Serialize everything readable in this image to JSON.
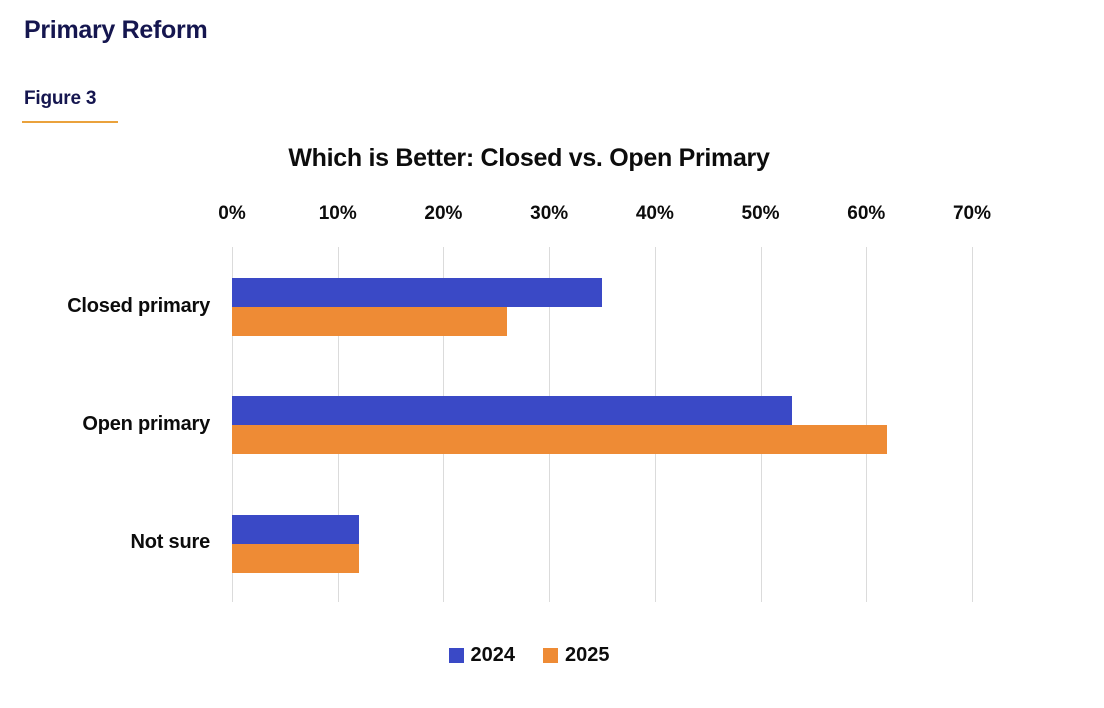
{
  "page": {
    "title": "Primary Reform",
    "figure_label": "Figure 3"
  },
  "colors": {
    "heading_navy": "#15164F",
    "figure_underline_orange": "#EAA23C",
    "gridline": "#DBDBDB",
    "series_2024_blue": "#3A49C6",
    "series_2025_orange": "#EE8B35",
    "text": "#0C0C0C"
  },
  "chart_data": {
    "type": "bar",
    "orientation": "horizontal",
    "title": "Which is Better: Closed vs. Open Primary",
    "categories": [
      "Closed primary",
      "Open primary",
      "Not sure"
    ],
    "series": [
      {
        "name": "2024",
        "color": "#3A49C6",
        "values": [
          35,
          53,
          12
        ]
      },
      {
        "name": "2025",
        "color": "#EE8B35",
        "values": [
          26,
          62,
          12
        ]
      }
    ],
    "value_unit": "%",
    "x_ticks": [
      "0%",
      "10%",
      "20%",
      "30%",
      "40%",
      "50%",
      "60%",
      "70%"
    ],
    "xlim": [
      0,
      70
    ],
    "grid": true,
    "axis_position": "top",
    "legend_position": "bottom"
  }
}
